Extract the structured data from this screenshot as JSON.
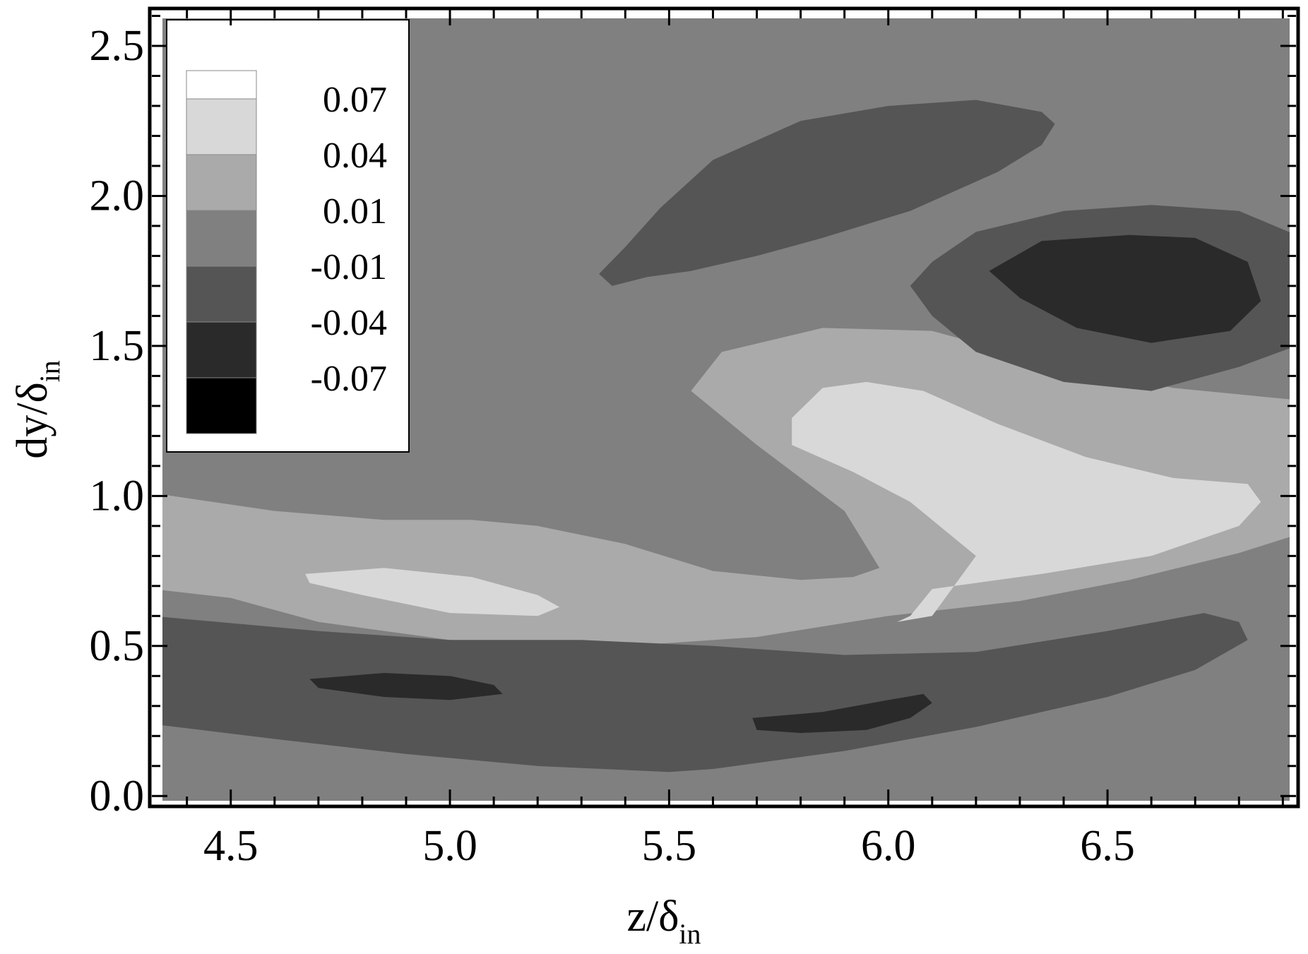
{
  "chart_data": {
    "type": "contour",
    "x_axis": {
      "label": "z/δ",
      "label_subscript": "in",
      "range": [
        4.32,
        6.93
      ],
      "ticks": [
        {
          "value": 4.5,
          "label": "4.5"
        },
        {
          "value": 5.0,
          "label": "5.0"
        },
        {
          "value": 5.5,
          "label": "5.5"
        },
        {
          "value": 6.0,
          "label": "6.0"
        },
        {
          "value": 6.5,
          "label": "6.5"
        }
      ],
      "minor_step": 0.1
    },
    "y_axis": {
      "label": "dy/δ",
      "label_subscript": "in",
      "range": [
        -0.03,
        2.62
      ],
      "ticks": [
        {
          "value": 0.0,
          "label": "0.0"
        },
        {
          "value": 0.5,
          "label": "0.5"
        },
        {
          "value": 1.0,
          "label": "1.0"
        },
        {
          "value": 1.5,
          "label": "1.5"
        },
        {
          "value": 2.0,
          "label": "2.0"
        },
        {
          "value": 2.5,
          "label": "2.5"
        }
      ],
      "minor_step": 0.1
    },
    "background_level_color": "#808080",
    "levels": [
      {
        "label": "0.07",
        "color": "#ffffff"
      },
      {
        "label": "0.04",
        "color": "#d8d8d8"
      },
      {
        "label": "0.01",
        "color": "#aaaaaa"
      },
      {
        "label": "-0.01",
        "color": "#808080"
      },
      {
        "label": "-0.04",
        "color": "#555555"
      },
      {
        "label": "-0.07",
        "color": "#2a2a2a"
      },
      {
        "label": "",
        "color": "#000000"
      }
    ],
    "regions": [
      {
        "color": "#aaaaaa",
        "points": [
          [
            4.32,
            1.01
          ],
          [
            4.6,
            0.95
          ],
          [
            4.85,
            0.92
          ],
          [
            5.05,
            0.92
          ],
          [
            5.2,
            0.9
          ],
          [
            5.4,
            0.84
          ],
          [
            5.6,
            0.75
          ],
          [
            5.8,
            0.72
          ],
          [
            5.92,
            0.73
          ],
          [
            5.98,
            0.76
          ],
          [
            5.9,
            0.95
          ],
          [
            5.7,
            1.17
          ],
          [
            5.55,
            1.35
          ],
          [
            5.62,
            1.48
          ],
          [
            5.85,
            1.56
          ],
          [
            6.1,
            1.55
          ],
          [
            6.35,
            1.45
          ],
          [
            6.65,
            1.36
          ],
          [
            6.93,
            1.32
          ],
          [
            6.93,
            0.87
          ],
          [
            6.8,
            0.81
          ],
          [
            6.55,
            0.72
          ],
          [
            6.3,
            0.65
          ],
          [
            6.0,
            0.6
          ],
          [
            5.7,
            0.53
          ],
          [
            5.4,
            0.5
          ],
          [
            5.0,
            0.52
          ],
          [
            4.7,
            0.58
          ],
          [
            4.5,
            0.66
          ],
          [
            4.32,
            0.69
          ]
        ]
      },
      {
        "color": "#555555",
        "points": [
          [
            4.32,
            0.6
          ],
          [
            4.7,
            0.55
          ],
          [
            5.0,
            0.52
          ],
          [
            5.3,
            0.52
          ],
          [
            5.6,
            0.5
          ],
          [
            5.9,
            0.47
          ],
          [
            6.2,
            0.48
          ],
          [
            6.5,
            0.55
          ],
          [
            6.72,
            0.61
          ],
          [
            6.8,
            0.58
          ],
          [
            6.82,
            0.52
          ],
          [
            6.7,
            0.42
          ],
          [
            6.5,
            0.33
          ],
          [
            6.2,
            0.23
          ],
          [
            5.9,
            0.15
          ],
          [
            5.6,
            0.09
          ],
          [
            5.5,
            0.08
          ],
          [
            5.2,
            0.1
          ],
          [
            4.9,
            0.14
          ],
          [
            4.6,
            0.19
          ],
          [
            4.32,
            0.24
          ]
        ]
      },
      {
        "color": "#555555",
        "points": [
          [
            5.37,
            1.7
          ],
          [
            5.45,
            1.73
          ],
          [
            5.55,
            1.75
          ],
          [
            5.7,
            1.8
          ],
          [
            5.85,
            1.86
          ],
          [
            6.05,
            1.95
          ],
          [
            6.25,
            2.08
          ],
          [
            6.35,
            2.17
          ],
          [
            6.38,
            2.24
          ],
          [
            6.35,
            2.28
          ],
          [
            6.2,
            2.32
          ],
          [
            6.0,
            2.3
          ],
          [
            5.8,
            2.25
          ],
          [
            5.6,
            2.12
          ],
          [
            5.48,
            1.96
          ],
          [
            5.4,
            1.83
          ],
          [
            5.34,
            1.74
          ]
        ]
      },
      {
        "color": "#555555",
        "points": [
          [
            6.1,
            1.78
          ],
          [
            6.2,
            1.88
          ],
          [
            6.4,
            1.95
          ],
          [
            6.6,
            1.97
          ],
          [
            6.8,
            1.95
          ],
          [
            6.93,
            1.87
          ],
          [
            6.93,
            1.5
          ],
          [
            6.8,
            1.43
          ],
          [
            6.6,
            1.35
          ],
          [
            6.4,
            1.38
          ],
          [
            6.2,
            1.48
          ],
          [
            6.1,
            1.6
          ],
          [
            6.05,
            1.7
          ]
        ]
      },
      {
        "color": "#2a2a2a",
        "points": [
          [
            6.23,
            1.75
          ],
          [
            6.35,
            1.85
          ],
          [
            6.55,
            1.87
          ],
          [
            6.7,
            1.86
          ],
          [
            6.82,
            1.78
          ],
          [
            6.85,
            1.65
          ],
          [
            6.78,
            1.55
          ],
          [
            6.6,
            1.51
          ],
          [
            6.43,
            1.56
          ],
          [
            6.3,
            1.66
          ]
        ]
      },
      {
        "color": "#2a2a2a",
        "points": [
          [
            4.68,
            0.39
          ],
          [
            4.85,
            0.41
          ],
          [
            5.0,
            0.4
          ],
          [
            5.1,
            0.37
          ],
          [
            5.12,
            0.34
          ],
          [
            5.0,
            0.32
          ],
          [
            4.85,
            0.33
          ],
          [
            4.7,
            0.36
          ]
        ]
      },
      {
        "color": "#2a2a2a",
        "points": [
          [
            5.69,
            0.26
          ],
          [
            5.85,
            0.28
          ],
          [
            6.0,
            0.32
          ],
          [
            6.08,
            0.34
          ],
          [
            6.1,
            0.31
          ],
          [
            6.05,
            0.26
          ],
          [
            5.95,
            0.22
          ],
          [
            5.8,
            0.21
          ],
          [
            5.7,
            0.22
          ]
        ]
      },
      {
        "color": "#d8d8d8",
        "points": [
          [
            4.67,
            0.74
          ],
          [
            4.85,
            0.76
          ],
          [
            5.05,
            0.73
          ],
          [
            5.2,
            0.67
          ],
          [
            5.25,
            0.63
          ],
          [
            5.2,
            0.6
          ],
          [
            5.0,
            0.61
          ],
          [
            4.8,
            0.67
          ],
          [
            4.68,
            0.71
          ]
        ]
      },
      {
        "color": "#d8d8d8",
        "points": [
          [
            5.78,
            1.17
          ],
          [
            5.78,
            1.26
          ],
          [
            5.85,
            1.36
          ],
          [
            5.95,
            1.38
          ],
          [
            6.08,
            1.35
          ],
          [
            6.25,
            1.24
          ],
          [
            6.45,
            1.13
          ],
          [
            6.65,
            1.06
          ],
          [
            6.82,
            1.04
          ],
          [
            6.85,
            0.98
          ],
          [
            6.8,
            0.9
          ],
          [
            6.6,
            0.8
          ],
          [
            6.35,
            0.74
          ],
          [
            6.1,
            0.69
          ],
          [
            6.05,
            0.6
          ],
          [
            6.02,
            0.58
          ],
          [
            6.1,
            0.6
          ],
          [
            6.2,
            0.8
          ],
          [
            6.05,
            0.98
          ],
          [
            5.92,
            1.08
          ]
        ]
      }
    ],
    "legend": {
      "position": "top-left",
      "labels": [
        "0.07",
        "0.04",
        "0.01",
        "-0.01",
        "-0.04",
        "-0.07"
      ]
    }
  }
}
